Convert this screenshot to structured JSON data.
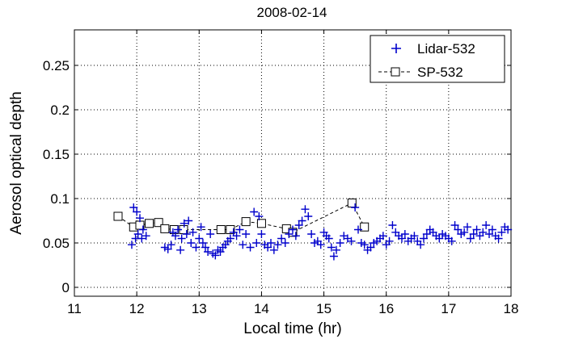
{
  "chart_data": {
    "type": "scatter",
    "title": "2008-02-14",
    "xlabel": "Local time (hr)",
    "ylabel": "Aerosol optical depth",
    "xlim": [
      11,
      18
    ],
    "ylim": [
      -0.01,
      0.29
    ],
    "xticks": [
      11,
      12,
      13,
      14,
      15,
      16,
      17,
      18
    ],
    "yticks": [
      0,
      0.05,
      0.1,
      0.15,
      0.2,
      0.25
    ],
    "ytick_labels": [
      "0",
      "0.05",
      "0.1",
      "0.15",
      "0.2",
      "0.25"
    ],
    "grid": true,
    "legend_position": "top-right",
    "series": [
      {
        "name": "Lidar-532",
        "marker": "plus",
        "color": "#0000cc",
        "points": [
          [
            11.92,
            0.048
          ],
          [
            11.95,
            0.09
          ],
          [
            11.98,
            0.055
          ],
          [
            12.0,
            0.085
          ],
          [
            12.02,
            0.06
          ],
          [
            12.05,
            0.078
          ],
          [
            12.08,
            0.055
          ],
          [
            12.1,
            0.065
          ],
          [
            12.15,
            0.058
          ],
          [
            12.45,
            0.045
          ],
          [
            12.5,
            0.043
          ],
          [
            12.55,
            0.048
          ],
          [
            12.58,
            0.062
          ],
          [
            12.62,
            0.058
          ],
          [
            12.66,
            0.065
          ],
          [
            12.7,
            0.042
          ],
          [
            12.72,
            0.055
          ],
          [
            12.76,
            0.072
          ],
          [
            12.8,
            0.06
          ],
          [
            12.83,
            0.075
          ],
          [
            12.87,
            0.05
          ],
          [
            12.9,
            0.062
          ],
          [
            12.95,
            0.045
          ],
          [
            13.0,
            0.055
          ],
          [
            13.03,
            0.068
          ],
          [
            13.06,
            0.05
          ],
          [
            13.1,
            0.045
          ],
          [
            13.14,
            0.04
          ],
          [
            13.18,
            0.06
          ],
          [
            13.22,
            0.038
          ],
          [
            13.26,
            0.036
          ],
          [
            13.3,
            0.042
          ],
          [
            13.34,
            0.04
          ],
          [
            13.38,
            0.045
          ],
          [
            13.42,
            0.048
          ],
          [
            13.46,
            0.052
          ],
          [
            13.5,
            0.055
          ],
          [
            13.55,
            0.062
          ],
          [
            13.6,
            0.058
          ],
          [
            13.65,
            0.065
          ],
          [
            13.7,
            0.048
          ],
          [
            13.75,
            0.06
          ],
          [
            13.82,
            0.045
          ],
          [
            13.88,
            0.085
          ],
          [
            13.92,
            0.05
          ],
          [
            13.96,
            0.08
          ],
          [
            14.0,
            0.06
          ],
          [
            14.05,
            0.048
          ],
          [
            14.1,
            0.045
          ],
          [
            14.15,
            0.05
          ],
          [
            14.2,
            0.042
          ],
          [
            14.26,
            0.048
          ],
          [
            14.32,
            0.055
          ],
          [
            14.38,
            0.05
          ],
          [
            14.44,
            0.06
          ],
          [
            14.5,
            0.065
          ],
          [
            14.55,
            0.058
          ],
          [
            14.6,
            0.07
          ],
          [
            14.65,
            0.075
          ],
          [
            14.7,
            0.088
          ],
          [
            14.75,
            0.08
          ],
          [
            14.8,
            0.06
          ],
          [
            14.85,
            0.05
          ],
          [
            14.9,
            0.052
          ],
          [
            14.95,
            0.048
          ],
          [
            15.0,
            0.062
          ],
          [
            15.04,
            0.058
          ],
          [
            15.08,
            0.055
          ],
          [
            15.12,
            0.045
          ],
          [
            15.16,
            0.035
          ],
          [
            15.2,
            0.042
          ],
          [
            15.26,
            0.05
          ],
          [
            15.32,
            0.058
          ],
          [
            15.38,
            0.055
          ],
          [
            15.44,
            0.052
          ],
          [
            15.5,
            0.09
          ],
          [
            15.55,
            0.065
          ],
          [
            15.6,
            0.05
          ],
          [
            15.65,
            0.048
          ],
          [
            15.7,
            0.042
          ],
          [
            15.75,
            0.045
          ],
          [
            15.8,
            0.05
          ],
          [
            15.85,
            0.052
          ],
          [
            15.9,
            0.055
          ],
          [
            15.95,
            0.058
          ],
          [
            16.0,
            0.048
          ],
          [
            16.05,
            0.052
          ],
          [
            16.1,
            0.07
          ],
          [
            16.15,
            0.062
          ],
          [
            16.2,
            0.058
          ],
          [
            16.25,
            0.055
          ],
          [
            16.3,
            0.06
          ],
          [
            16.35,
            0.052
          ],
          [
            16.4,
            0.055
          ],
          [
            16.45,
            0.058
          ],
          [
            16.5,
            0.052
          ],
          [
            16.55,
            0.048
          ],
          [
            16.6,
            0.055
          ],
          [
            16.65,
            0.06
          ],
          [
            16.7,
            0.065
          ],
          [
            16.75,
            0.062
          ],
          [
            16.8,
            0.058
          ],
          [
            16.85,
            0.055
          ],
          [
            16.9,
            0.06
          ],
          [
            16.95,
            0.058
          ],
          [
            17.0,
            0.055
          ],
          [
            17.05,
            0.052
          ],
          [
            17.1,
            0.07
          ],
          [
            17.15,
            0.065
          ],
          [
            17.2,
            0.06
          ],
          [
            17.25,
            0.062
          ],
          [
            17.3,
            0.068
          ],
          [
            17.35,
            0.055
          ],
          [
            17.4,
            0.06
          ],
          [
            17.45,
            0.065
          ],
          [
            17.5,
            0.058
          ],
          [
            17.55,
            0.062
          ],
          [
            17.6,
            0.07
          ],
          [
            17.65,
            0.06
          ],
          [
            17.7,
            0.065
          ],
          [
            17.75,
            0.058
          ],
          [
            17.8,
            0.055
          ],
          [
            17.85,
            0.062
          ],
          [
            17.9,
            0.068
          ],
          [
            17.95,
            0.065
          ]
        ]
      },
      {
        "name": "SP-532",
        "marker": "square",
        "color": "#000000",
        "line": "dashed",
        "points": [
          [
            11.7,
            0.08
          ],
          [
            11.95,
            0.068
          ],
          [
            12.05,
            0.07
          ],
          [
            12.2,
            0.072
          ],
          [
            12.35,
            0.073
          ],
          [
            12.45,
            0.066
          ],
          [
            12.6,
            0.065
          ],
          [
            12.75,
            0.065
          ],
          [
            13.35,
            0.065
          ],
          [
            13.5,
            0.065
          ],
          [
            13.75,
            0.074
          ],
          [
            14.0,
            0.072
          ],
          [
            14.4,
            0.066
          ],
          [
            14.5,
            0.062
          ],
          [
            15.45,
            0.095
          ],
          [
            15.65,
            0.068
          ]
        ]
      }
    ]
  }
}
